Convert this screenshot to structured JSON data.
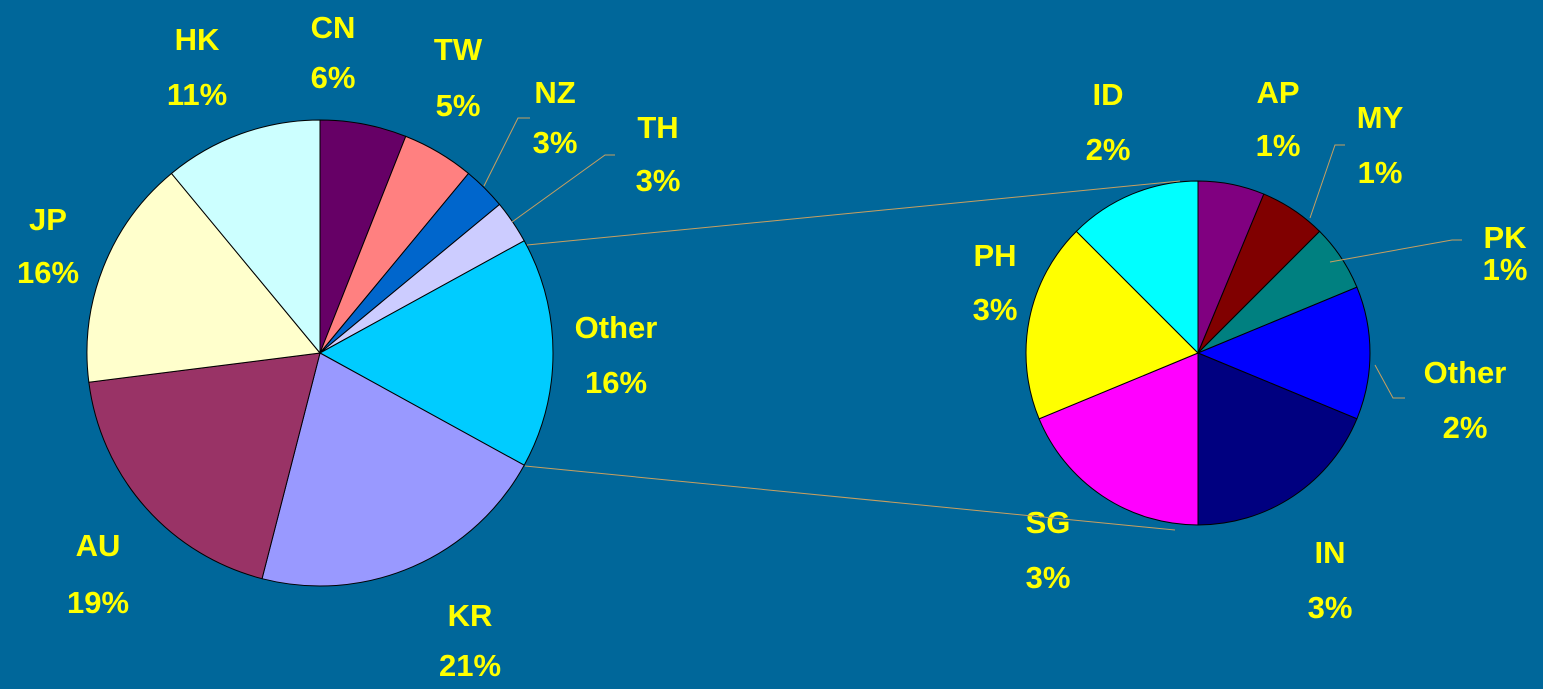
{
  "chart_data": [
    {
      "type": "pie",
      "categories": [
        "CN",
        "TW",
        "NZ",
        "TH",
        "Other",
        "KR",
        "AU",
        "JP",
        "HK"
      ],
      "values": [
        6,
        5,
        3,
        3,
        16,
        21,
        19,
        16,
        11
      ],
      "value_labels": [
        "6%",
        "5%",
        "3%",
        "3%",
        "16%",
        "21%",
        "19%",
        "16%",
        "11%"
      ],
      "colors": [
        "#660066",
        "#ff8080",
        "#0066cc",
        "#ccccff",
        "#00ccff",
        "#9999ff",
        "#993366",
        "#ffffcc",
        "#ccffff"
      ]
    },
    {
      "type": "pie",
      "categories": [
        "AP",
        "MY",
        "PK",
        "Other",
        "IN",
        "SG",
        "PH",
        "ID"
      ],
      "values": [
        1,
        1,
        1,
        2,
        3,
        3,
        3,
        2
      ],
      "value_labels": [
        "1%",
        "1%",
        "1%",
        "2%",
        "3%",
        "3%",
        "3%",
        "2%"
      ],
      "colors": [
        "#800080",
        "#800000",
        "#008080",
        "#0000ff",
        "#000080",
        "#ff00ff",
        "#ffff00",
        "#00ffff"
      ]
    }
  ]
}
